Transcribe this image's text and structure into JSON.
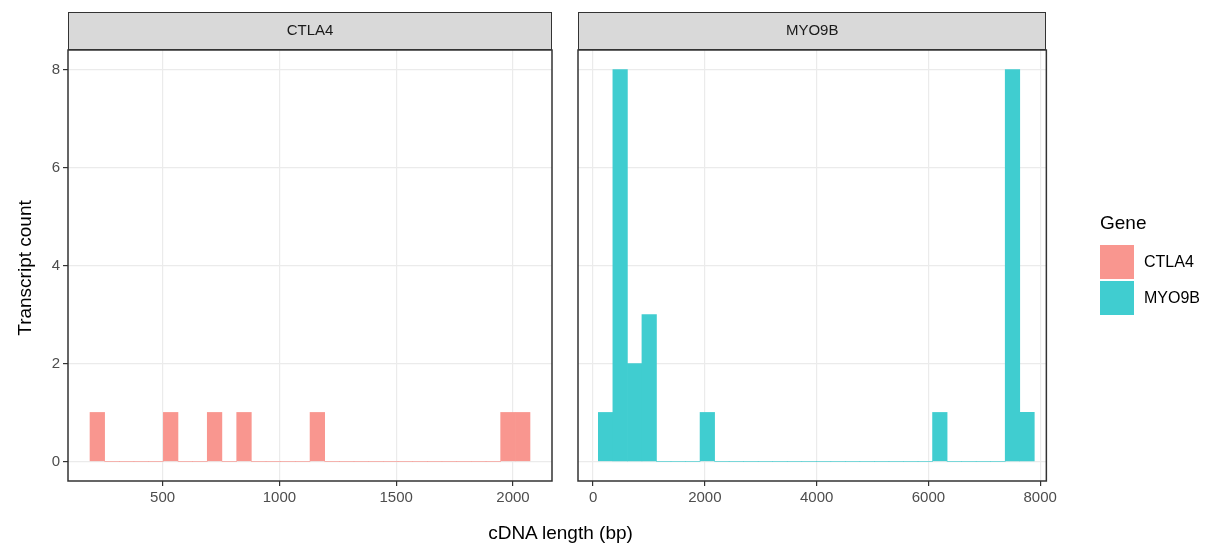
{
  "chart_data": [
    {
      "type": "histogram",
      "title": "CTLA4",
      "ylabel": "Transcript count",
      "xlabel": "cDNA length (bp)",
      "legend_title": "Gene",
      "legend": "right",
      "grid": true,
      "bins": [
        189,
        252,
        315,
        377,
        440,
        503,
        566,
        629,
        691,
        754,
        817,
        880,
        943,
        1005,
        1068,
        1131,
        1194,
        1257,
        1319,
        1382,
        1445,
        1508,
        1571,
        1633,
        1696,
        1759,
        1822,
        1885,
        1947,
        2010,
        2073
      ],
      "series": [
        {
          "name": "CTLA4",
          "color": "#f9968f",
          "values": [
            1,
            0,
            0,
            0,
            0,
            1,
            0,
            0,
            1,
            0,
            1,
            0,
            0,
            0,
            0,
            1,
            0,
            0,
            0,
            0,
            0,
            0,
            0,
            0,
            0,
            0,
            0,
            0,
            1,
            1
          ]
        }
      ],
      "xlim": [
        95,
        2167
      ],
      "xticks": [
        500,
        1000,
        1500,
        2000
      ],
      "ylim": [
        -0.4,
        8.4
      ],
      "yticks": [
        0,
        2,
        4,
        6,
        8
      ]
    },
    {
      "type": "histogram",
      "title": "MYO9B",
      "legend": "right",
      "grid": true,
      "tick_labels": "x",
      "bins": [
        94,
        354,
        614,
        874,
        1134,
        1394,
        1654,
        1914,
        2174,
        2434,
        2694,
        2954,
        3214,
        3474,
        3734,
        3994,
        4254,
        4514,
        4774,
        5034,
        5294,
        5554,
        5814,
        6074,
        6334,
        6594,
        6854,
        7114,
        7374,
        7634,
        7894
      ],
      "series": [
        {
          "name": "MYO9B",
          "color": "#40cdd0",
          "values": [
            1,
            8,
            2,
            3,
            0,
            0,
            0,
            1,
            0,
            0,
            0,
            0,
            0,
            0,
            0,
            0,
            0,
            0,
            0,
            0,
            0,
            0,
            0,
            1,
            0,
            0,
            0,
            0,
            8,
            1
          ]
        }
      ],
      "xlim": [
        -270,
        8110
      ],
      "xticks": [
        0,
        2000,
        4000,
        6000,
        8000
      ],
      "ylim": [
        -0.4,
        8.4
      ],
      "yticks": [
        0,
        2,
        4,
        6,
        8
      ]
    }
  ]
}
